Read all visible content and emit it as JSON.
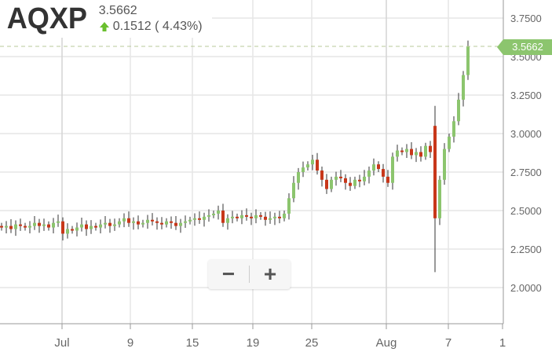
{
  "header": {
    "symbol": "AQXP",
    "last": "3.5662",
    "change": "0.1512 ( 4.43%)",
    "direction_icon": "arrow-up-icon"
  },
  "zoom": {
    "minus": "−",
    "plus": "+"
  },
  "price_tag": "3.5662",
  "colors": {
    "up": "#8cc56e",
    "down": "#c8371a",
    "wick": "#333333",
    "grid": "#e6e6e6",
    "last_line": "#b9c99a"
  },
  "chart_data": {
    "type": "candlestick",
    "title": "",
    "ylim": [
      1.8,
      3.85
    ],
    "grid": true,
    "y_ticks": [
      "3.7500",
      "3.5000",
      "3.2500",
      "3.0000",
      "2.7500",
      "2.5000",
      "2.2500",
      "2.0000"
    ],
    "y_tick_values": [
      3.75,
      3.5,
      3.25,
      3.0,
      2.75,
      2.5,
      2.25,
      2.0
    ],
    "x_ticks": [
      "Jul",
      "9",
      "15",
      "19",
      "25",
      "Aug",
      "7",
      "1"
    ],
    "last_price": 3.5662,
    "close": [
      2.39,
      2.4,
      2.38,
      2.41,
      2.4,
      2.39,
      2.4,
      2.42,
      2.4,
      2.41,
      2.39,
      2.42,
      2.43,
      2.35,
      2.38,
      2.37,
      2.39,
      2.41,
      2.38,
      2.4,
      2.39,
      2.41,
      2.42,
      2.4,
      2.41,
      2.43,
      2.45,
      2.42,
      2.43,
      2.41,
      2.42,
      2.44,
      2.43,
      2.42,
      2.41,
      2.43,
      2.42,
      2.4,
      2.42,
      2.43,
      2.44,
      2.45,
      2.44,
      2.46,
      2.47,
      2.48,
      2.5,
      2.42,
      2.45,
      2.46,
      2.45,
      2.47,
      2.46,
      2.45,
      2.47,
      2.46,
      2.44,
      2.45,
      2.46,
      2.45,
      2.48,
      2.58,
      2.68,
      2.75,
      2.78,
      2.8,
      2.83,
      2.76,
      2.7,
      2.64,
      2.7,
      2.72,
      2.71,
      2.68,
      2.66,
      2.7,
      2.69,
      2.72,
      2.76,
      2.8,
      2.77,
      2.72,
      2.68,
      2.85,
      2.89,
      2.88,
      2.9,
      2.86,
      2.88,
      2.85,
      2.92,
      2.88,
      2.45,
      2.7,
      2.9,
      2.98,
      3.08,
      3.22,
      3.38,
      3.5662
    ],
    "overrides": [
      {
        "index": 92,
        "open": 3.05,
        "high": 3.18,
        "low": 2.1
      }
    ]
  }
}
